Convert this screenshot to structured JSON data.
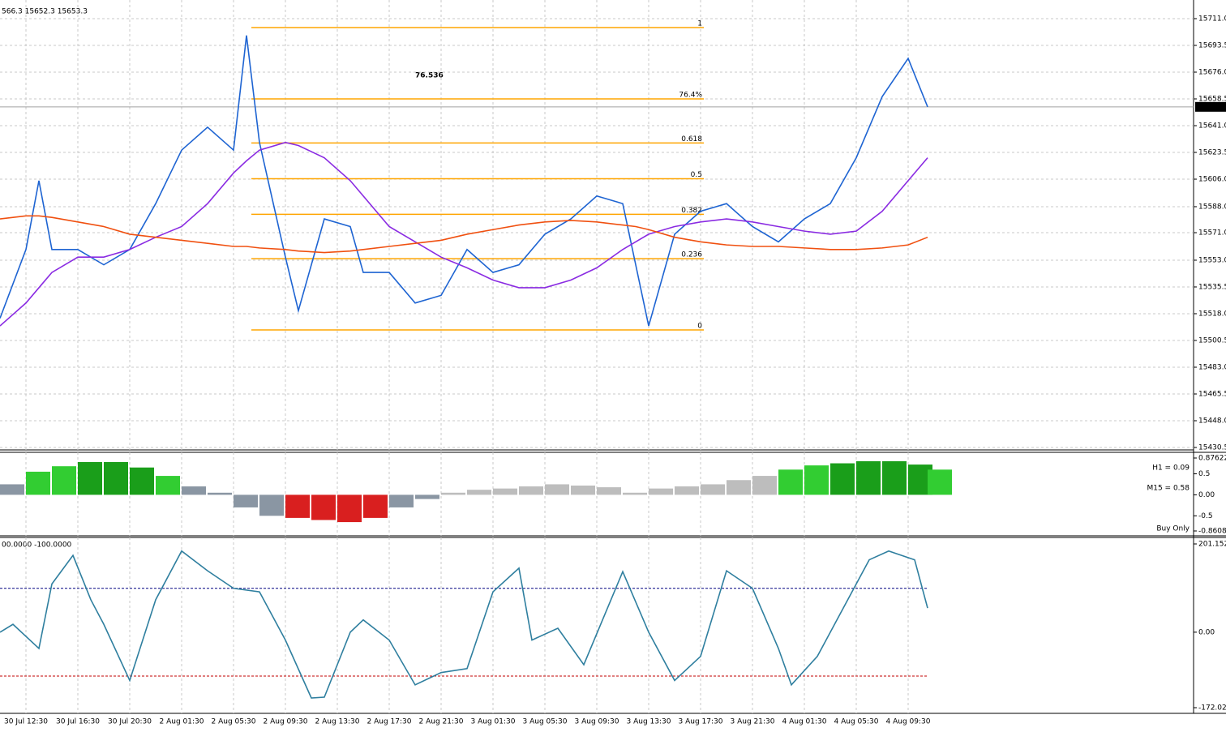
{
  "chart_data": [
    {
      "type": "line",
      "header": "566.3 15652.3 15653.3",
      "annotation": "76.536",
      "x": [
        0,
        8,
        12,
        16,
        24,
        32,
        40,
        48,
        56,
        64,
        72,
        76,
        80,
        88,
        92,
        100,
        108,
        112,
        120,
        128,
        136,
        144,
        152,
        160,
        168,
        176,
        184,
        192,
        196,
        200,
        208,
        216,
        224,
        232,
        240,
        248,
        256,
        264,
        272,
        280,
        286
      ],
      "series": [
        {
          "name": "Price",
          "color": "#1e64d2",
          "values": [
            15515,
            15560,
            15605,
            15560,
            15560,
            15550,
            15560,
            15590,
            15625,
            15640,
            15625,
            15700,
            15630,
            15555,
            15520,
            15580,
            15575,
            15545,
            15545,
            15525,
            15530,
            15560,
            15545,
            15550,
            15570,
            15580,
            15595,
            15590,
            15550,
            15510,
            15570,
            15585,
            15590,
            15575,
            15565,
            15580,
            15590,
            15620,
            15660,
            15685,
            15653.3
          ]
        },
        {
          "name": "MA",
          "color": "#8a2be2",
          "values": [
            15510,
            15525,
            15535,
            15545,
            15555,
            15555,
            15560,
            15568,
            15575,
            15590,
            15610,
            15618,
            15625,
            15630,
            15628,
            15620,
            15605,
            15595,
            15575,
            15565,
            15555,
            15548,
            15540,
            15535,
            15535,
            15540,
            15548,
            15560,
            15565,
            15570,
            15575,
            15578,
            15580,
            15578,
            15575,
            15572,
            15570,
            15572,
            15585,
            15605,
            15620
          ]
        },
        {
          "name": "Slow MA",
          "color": "#f05010",
          "values": [
            15580,
            15582,
            15582,
            15581,
            15578,
            15575,
            15570,
            15568,
            15566,
            15564,
            15562,
            15562,
            15561,
            15560,
            15559,
            15558,
            15559,
            15560,
            15562,
            15564,
            15566,
            15570,
            15573,
            15576,
            15578,
            15579,
            15578,
            15576,
            15575,
            15573,
            15568,
            15565,
            15563,
            15562,
            15562,
            15561,
            15560,
            15560,
            15561,
            15563,
            15568
          ]
        }
      ],
      "last_price": 15653.3,
      "fib_levels": [
        {
          "value": 15705.2,
          "label": "1"
        },
        {
          "value": 15658.5,
          "label": "76.4%"
        },
        {
          "value": 15629.7,
          "label": "0.618"
        },
        {
          "value": 15606.3,
          "label": "0.5"
        },
        {
          "value": 15583,
          "label": "0.382"
        },
        {
          "value": 15554,
          "label": "0.236"
        },
        {
          "value": 15507.4,
          "label": "0"
        }
      ],
      "fib_color": "#ffa500",
      "xlim": [
        0,
        368
      ],
      "xticks": [
        {
          "value": 8,
          "label": "30 Jul 12:30"
        },
        {
          "value": 24,
          "label": "30 Jul 16:30"
        },
        {
          "value": 40,
          "label": "30 Jul 20:30"
        },
        {
          "value": 56,
          "label": "2 Aug 01:30"
        },
        {
          "value": 72,
          "label": "2 Aug 05:30"
        },
        {
          "value": 88,
          "label": "2 Aug 09:30"
        },
        {
          "value": 104,
          "label": "2 Aug 13:30"
        },
        {
          "value": 120,
          "label": "2 Aug 17:30"
        },
        {
          "value": 136,
          "label": "2 Aug 21:30"
        },
        {
          "value": 152,
          "label": "3 Aug 01:30"
        },
        {
          "value": 168,
          "label": "3 Aug 05:30"
        },
        {
          "value": 184,
          "label": "3 Aug 09:30"
        },
        {
          "value": 200,
          "label": "3 Aug 13:30"
        },
        {
          "value": 216,
          "label": "3 Aug 17:30"
        },
        {
          "value": 232,
          "label": "3 Aug 21:30"
        },
        {
          "value": 248,
          "label": "4 Aug 01:30"
        },
        {
          "value": 264,
          "label": "4 Aug 05:30"
        },
        {
          "value": 280,
          "label": "4 Aug 09:30"
        }
      ],
      "ylim": [
        15430.5,
        15711.0
      ],
      "yticks": [
        15430.5,
        {
          "value": 15448,
          "label": "15448.0"
        },
        15465.5,
        {
          "value": 15483,
          "label": "15483.0"
        },
        15500.5,
        {
          "value": 15518,
          "label": "15518.0"
        },
        15535.5,
        {
          "value": 15553,
          "label": "15553.0"
        },
        {
          "value": 15571,
          "label": "15571.0"
        },
        {
          "value": 15588,
          "label": "15588.0"
        },
        {
          "value": 15606,
          "label": "15606.0"
        },
        15623.5,
        {
          "value": 15641,
          "label": "15641.0"
        },
        15658.5,
        {
          "value": 15676,
          "label": "15676.0"
        },
        15693.5,
        {
          "value": 15711,
          "label": "15711.0"
        }
      ],
      "grid": true
    },
    {
      "type": "bar",
      "texts": [
        "H1 = 0.09",
        "M15 = 0.58",
        "Buy Only"
      ],
      "text_colors": [
        "#a0a0a0",
        "#9acd32",
        "#9acd32"
      ],
      "x": [
        0,
        8,
        16,
        24,
        32,
        40,
        48,
        56,
        64,
        72,
        80,
        88,
        96,
        104,
        112,
        120,
        128,
        136,
        144,
        152,
        160,
        168,
        176,
        184,
        192,
        200,
        208,
        216,
        224,
        232,
        240,
        248,
        256,
        264,
        272,
        280,
        286
      ],
      "values": [
        0.25,
        0.55,
        0.68,
        0.78,
        0.78,
        0.65,
        0.45,
        0.2,
        0.05,
        -0.3,
        -0.5,
        -0.55,
        -0.6,
        -0.65,
        -0.55,
        -0.3,
        -0.1,
        0.05,
        0.12,
        0.15,
        0.2,
        0.25,
        0.22,
        0.18,
        0.05,
        0.15,
        0.2,
        0.25,
        0.35,
        0.45,
        0.6,
        0.7,
        0.75,
        0.8,
        0.8,
        0.72,
        0.6
      ],
      "colors": [
        "#8a96a3",
        "#32cd32",
        "#32cd32",
        "#1a9e1a",
        "#1a9e1a",
        "#1a9e1a",
        "#32cd32",
        "#8a96a3",
        "#8a96a3",
        "#8a96a3",
        "#8a96a3",
        "#d91f1f",
        "#d91f1f",
        "#d91f1f",
        "#d91f1f",
        "#8a96a3",
        "#8a96a3",
        "#bdbdbd",
        "#bdbdbd",
        "#bdbdbd",
        "#bdbdbd",
        "#bdbdbd",
        "#bdbdbd",
        "#bdbdbd",
        "#bdbdbd",
        "#bdbdbd",
        "#bdbdbd",
        "#bdbdbd",
        "#bdbdbd",
        "#bdbdbd",
        "#32cd32",
        "#32cd32",
        "#1a9e1a",
        "#1a9e1a",
        "#1a9e1a",
        "#1a9e1a",
        "#32cd32"
      ],
      "ylim": [
        -0.8608,
        0.87622
      ],
      "yticks": [
        0.87622,
        0.5,
        {
          "value": 0,
          "label": "0.00"
        },
        -0.5,
        -0.8608
      ]
    },
    {
      "type": "line",
      "header": "00.0000 -100.0000",
      "x": [
        0,
        4,
        12,
        16,
        22.5,
        28,
        32,
        40,
        48,
        56,
        64,
        72,
        80,
        88,
        96,
        100,
        108,
        112,
        120,
        128,
        136,
        144,
        152,
        160,
        164,
        172,
        180,
        192,
        200,
        208,
        216,
        224,
        232,
        240,
        244,
        252,
        260,
        268,
        274,
        282,
        286
      ],
      "series": [
        {
          "name": "Oscillator",
          "color": "#2f7f9f",
          "values": [
            0,
            18,
            -37,
            110,
            175,
            74,
            18,
            -110,
            74,
            185,
            140,
            100,
            92,
            -18,
            -150,
            -148,
            0,
            28,
            -18,
            -120,
            -92,
            -83,
            92,
            146,
            -18,
            9,
            -74,
            138,
            0,
            -110,
            -55,
            140,
            100,
            -37,
            -120,
            -55,
            55,
            165,
            185,
            165,
            55
          ]
        }
      ],
      "levels": [
        {
          "value": 100,
          "color": "#000080"
        },
        {
          "value": -100,
          "color": "#c00000"
        }
      ],
      "ylim": [
        -172.0245,
        201.1527
      ],
      "yticks": [
        201.1527,
        {
          "value": 0,
          "label": "0.00"
        },
        -172.0245
      ]
    }
  ]
}
